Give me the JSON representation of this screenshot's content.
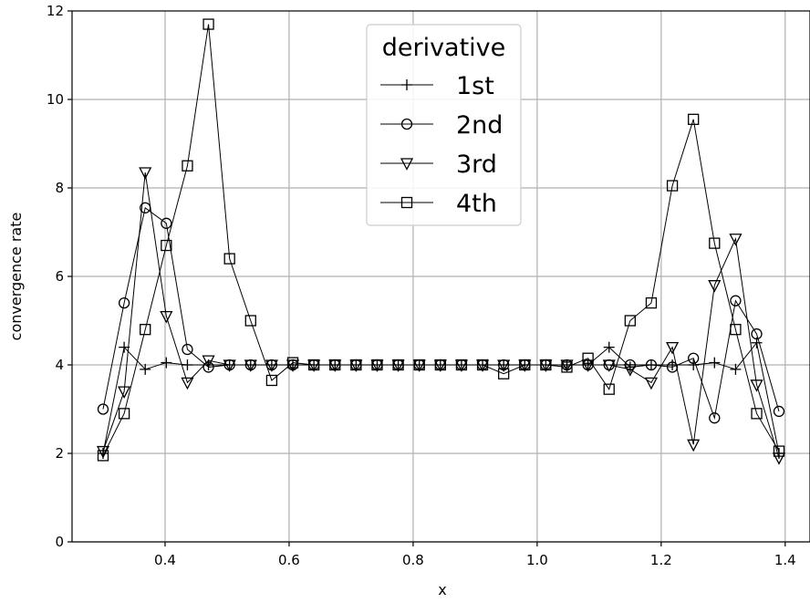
{
  "chart_data": {
    "type": "line",
    "xlabel": "x",
    "ylabel": "convergence rate",
    "xlim": [
      0.25,
      1.44
    ],
    "ylim": [
      0,
      12
    ],
    "xticks": [
      0.4,
      0.6,
      0.8,
      1.0,
      1.2,
      1.4
    ],
    "xtick_labels": [
      "0.4",
      "0.6",
      "0.8",
      "1.0",
      "1.2",
      "1.4"
    ],
    "yticks": [
      0,
      2,
      4,
      6,
      8,
      10,
      12
    ],
    "ytick_labels": [
      "0",
      "2",
      "4",
      "6",
      "8",
      "10",
      "12"
    ],
    "grid": true,
    "legend": {
      "title": "derivative",
      "placement": "upper-center"
    },
    "x": [
      0.3,
      0.334,
      0.368,
      0.402,
      0.436,
      0.47,
      0.504,
      0.538,
      0.572,
      0.606,
      0.64,
      0.674,
      0.708,
      0.742,
      0.776,
      0.81,
      0.844,
      0.878,
      0.912,
      0.946,
      0.98,
      1.014,
      1.048,
      1.082,
      1.116,
      1.15,
      1.184,
      1.218,
      1.252,
      1.286,
      1.32,
      1.354,
      1.39
    ],
    "series": [
      {
        "name": "1st",
        "marker": "plus",
        "values": [
          2.0,
          4.4,
          3.9,
          4.05,
          4.0,
          4.0,
          4.0,
          4.0,
          4.0,
          4.0,
          4.0,
          4.0,
          4.0,
          4.0,
          4.0,
          4.0,
          4.0,
          4.0,
          4.0,
          4.0,
          4.0,
          4.0,
          4.0,
          4.0,
          4.4,
          3.95,
          4.0,
          4.0,
          4.0,
          4.05,
          3.9,
          4.5,
          2.0
        ]
      },
      {
        "name": "2nd",
        "marker": "circle",
        "values": [
          3.0,
          5.4,
          7.55,
          7.2,
          4.35,
          3.95,
          4.0,
          4.0,
          4.0,
          4.0,
          4.0,
          4.0,
          4.0,
          4.0,
          4.0,
          4.0,
          4.0,
          4.0,
          4.0,
          4.0,
          4.0,
          4.0,
          4.0,
          4.0,
          4.0,
          4.0,
          4.0,
          3.95,
          4.15,
          2.8,
          5.45,
          4.7,
          2.95
        ]
      },
      {
        "name": "3rd",
        "marker": "triangle-down",
        "values": [
          2.05,
          3.4,
          8.35,
          5.1,
          3.6,
          4.1,
          4.0,
          4.0,
          4.0,
          4.0,
          4.0,
          4.0,
          4.0,
          4.0,
          4.0,
          4.0,
          4.0,
          4.0,
          4.0,
          4.0,
          4.0,
          4.0,
          4.0,
          4.0,
          4.0,
          3.9,
          3.6,
          4.4,
          2.2,
          5.8,
          6.85,
          3.55,
          1.9
        ]
      },
      {
        "name": "4th",
        "marker": "square",
        "values": [
          1.95,
          2.9,
          4.8,
          6.7,
          8.5,
          11.7,
          6.4,
          5.0,
          3.65,
          4.05,
          4.0,
          4.0,
          4.0,
          4.0,
          4.0,
          4.0,
          4.0,
          4.0,
          4.0,
          3.8,
          4.0,
          4.0,
          3.95,
          4.15,
          3.45,
          5.0,
          5.4,
          8.05,
          9.55,
          6.75,
          4.8,
          2.9,
          2.05
        ]
      }
    ]
  }
}
